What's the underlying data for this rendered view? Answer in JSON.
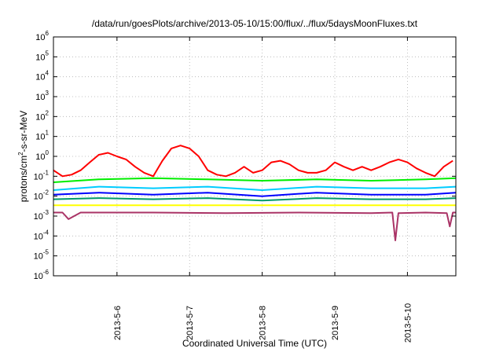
{
  "chart_data": {
    "type": "line",
    "title": "/data/run/goesPlots/archive/2013-05-10/15:00/flux/../flux/5daysMoonFluxes.txt",
    "xlabel": "Coordinated Universal Time (UTC)",
    "ylabel": {
      "prefix": "protons/cm",
      "sup": "2",
      "suffix": "-s-sr-MeV"
    },
    "x_scale": "date",
    "xlim": [
      "2013-05-05 03:00",
      "2013-05-10 16:00"
    ],
    "x_ticks": [
      "2013-5-6",
      "2013-5-7",
      "2013-5-8",
      "2013-5-9",
      "2013-5-10"
    ],
    "y_scale": "log",
    "ylim": [
      1e-06,
      1000000.0
    ],
    "y_ticks": [
      {
        "base": "10",
        "exp": "-6"
      },
      {
        "base": "10",
        "exp": "-5"
      },
      {
        "base": "10",
        "exp": "-4"
      },
      {
        "base": "10",
        "exp": "-3"
      },
      {
        "base": "10",
        "exp": "-2"
      },
      {
        "base": "10",
        "exp": "-1"
      },
      {
        "base": "10",
        "exp": "0"
      },
      {
        "base": "10",
        "exp": "1"
      },
      {
        "base": "10",
        "exp": "2"
      },
      {
        "base": "10",
        "exp": "3"
      },
      {
        "base": "10",
        "exp": "4"
      },
      {
        "base": "10",
        "exp": "5"
      },
      {
        "base": "10",
        "exp": "6"
      }
    ],
    "grid": true,
    "series": [
      {
        "color": "#ff0000",
        "x": [
          "2013-05-05 03:00",
          "2013-05-05 06:00",
          "2013-05-05 09:00",
          "2013-05-05 12:00",
          "2013-05-05 15:00",
          "2013-05-05 18:00",
          "2013-05-05 21:00",
          "2013-05-06 00:00",
          "2013-05-06 03:00",
          "2013-05-06 06:00",
          "2013-05-06 09:00",
          "2013-05-06 12:00",
          "2013-05-06 15:00",
          "2013-05-06 18:00",
          "2013-05-06 21:00",
          "2013-05-07 00:00",
          "2013-05-07 03:00",
          "2013-05-07 06:00",
          "2013-05-07 09:00",
          "2013-05-07 12:00",
          "2013-05-07 15:00",
          "2013-05-07 18:00",
          "2013-05-07 21:00",
          "2013-05-08 00:00",
          "2013-05-08 03:00",
          "2013-05-08 06:00",
          "2013-05-08 09:00",
          "2013-05-08 12:00",
          "2013-05-08 15:00",
          "2013-05-08 18:00",
          "2013-05-08 21:00",
          "2013-05-09 00:00",
          "2013-05-09 03:00",
          "2013-05-09 06:00",
          "2013-05-09 09:00",
          "2013-05-09 12:00",
          "2013-05-09 15:00",
          "2013-05-09 18:00",
          "2013-05-09 21:00",
          "2013-05-10 00:00",
          "2013-05-10 03:00",
          "2013-05-10 06:00",
          "2013-05-10 09:00",
          "2013-05-10 12:00",
          "2013-05-10 15:00"
        ],
        "y": [
          0.2,
          0.1,
          0.12,
          0.2,
          0.5,
          1.2,
          1.5,
          1.0,
          0.7,
          0.3,
          0.15,
          0.1,
          0.6,
          2.5,
          3.5,
          2.5,
          1.0,
          0.2,
          0.12,
          0.1,
          0.15,
          0.3,
          0.15,
          0.2,
          0.5,
          0.6,
          0.4,
          0.2,
          0.15,
          0.15,
          0.2,
          0.5,
          0.3,
          0.2,
          0.3,
          0.2,
          0.3,
          0.5,
          0.7,
          0.5,
          0.25,
          0.15,
          0.1,
          0.3,
          0.6
        ]
      },
      {
        "color": "#00ee00",
        "x": [
          "2013-05-05 03:00",
          "2013-05-05 18:00",
          "2013-05-06 12:00",
          "2013-05-07 06:00",
          "2013-05-08 00:00",
          "2013-05-08 18:00",
          "2013-05-09 12:00",
          "2013-05-10 06:00",
          "2013-05-10 16:00"
        ],
        "y": [
          0.05,
          0.07,
          0.08,
          0.07,
          0.06,
          0.07,
          0.06,
          0.07,
          0.08
        ]
      },
      {
        "color": "#00ccff",
        "x": [
          "2013-05-05 03:00",
          "2013-05-05 18:00",
          "2013-05-06 12:00",
          "2013-05-07 06:00",
          "2013-05-08 00:00",
          "2013-05-08 18:00",
          "2013-05-09 12:00",
          "2013-05-10 06:00",
          "2013-05-10 16:00"
        ],
        "y": [
          0.02,
          0.03,
          0.025,
          0.03,
          0.02,
          0.03,
          0.025,
          0.025,
          0.03
        ]
      },
      {
        "color": "#0000ff",
        "x": [
          "2013-05-05 03:00",
          "2013-05-05 18:00",
          "2013-05-06 12:00",
          "2013-05-07 06:00",
          "2013-05-08 00:00",
          "2013-05-08 18:00",
          "2013-05-09 12:00",
          "2013-05-10 06:00",
          "2013-05-10 16:00"
        ],
        "y": [
          0.012,
          0.015,
          0.012,
          0.015,
          0.01,
          0.015,
          0.012,
          0.012,
          0.015
        ]
      },
      {
        "color": "#009a6a",
        "x": [
          "2013-05-05 03:00",
          "2013-05-05 18:00",
          "2013-05-06 12:00",
          "2013-05-07 06:00",
          "2013-05-08 00:00",
          "2013-05-08 18:00",
          "2013-05-09 12:00",
          "2013-05-10 06:00",
          "2013-05-10 16:00"
        ],
        "y": [
          0.007,
          0.008,
          0.007,
          0.008,
          0.006,
          0.008,
          0.007,
          0.007,
          0.008
        ]
      },
      {
        "color": "#ffff00",
        "x": [
          "2013-05-05 03:00",
          "2013-05-05 18:00",
          "2013-05-06 12:00",
          "2013-05-07 06:00",
          "2013-05-08 00:00",
          "2013-05-08 18:00",
          "2013-05-09 12:00",
          "2013-05-10 06:00",
          "2013-05-10 16:00"
        ],
        "y": [
          0.0035,
          0.0035,
          0.0035,
          0.0035,
          0.0035,
          0.0035,
          0.0035,
          0.0035,
          0.0035
        ]
      },
      {
        "color": "#aa3366",
        "x": [
          "2013-05-05 03:00",
          "2013-05-05 06:00",
          "2013-05-05 08:00",
          "2013-05-05 12:00",
          "2013-05-06 12:00",
          "2013-05-07 12:00",
          "2013-05-08 12:00",
          "2013-05-09 12:00",
          "2013-05-09 19:00",
          "2013-05-09 20:00",
          "2013-05-09 21:00",
          "2013-05-10 06:00",
          "2013-05-10 13:00",
          "2013-05-10 14:00",
          "2013-05-10 15:00",
          "2013-05-10 16:00"
        ],
        "y": [
          0.0015,
          0.0015,
          0.0007,
          0.0015,
          0.0015,
          0.0014,
          0.0015,
          0.0014,
          0.0015,
          6e-05,
          0.0014,
          0.0015,
          0.0014,
          0.0003,
          0.0015,
          0.0015
        ]
      }
    ]
  }
}
